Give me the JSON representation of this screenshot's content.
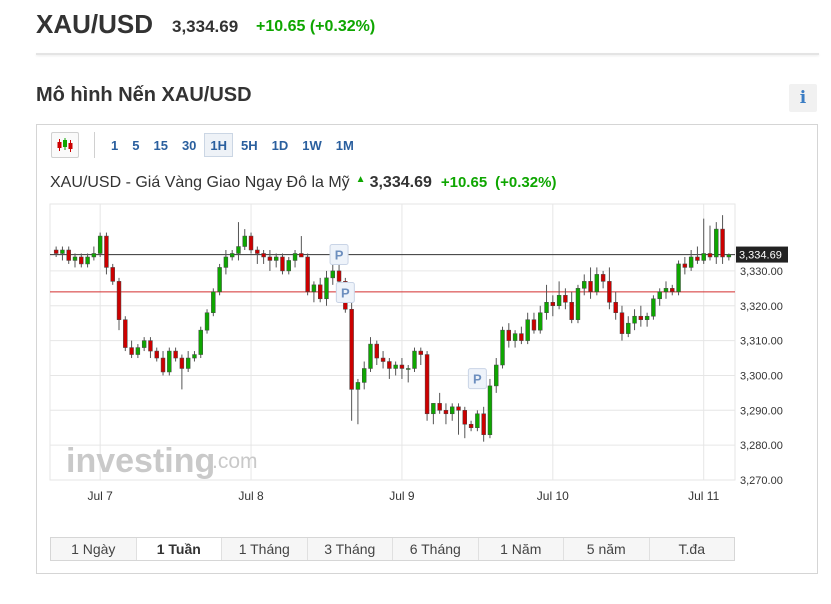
{
  "header": {
    "symbol": "XAU/USD",
    "price": "3,334.69",
    "change": "+10.65 (+0.32%)"
  },
  "section": {
    "title": "Mô hình Nến XAU/USD",
    "info_icon": "i"
  },
  "toolbar": {
    "candle_icon": "candlestick-icon",
    "intervals": [
      {
        "label": "1",
        "active": false
      },
      {
        "label": "5",
        "active": false
      },
      {
        "label": "15",
        "active": false
      },
      {
        "label": "30",
        "active": false
      },
      {
        "label": "1H",
        "active": true
      },
      {
        "label": "5H",
        "active": false
      },
      {
        "label": "1D",
        "active": false
      },
      {
        "label": "1W",
        "active": false
      },
      {
        "label": "1M",
        "active": false
      }
    ]
  },
  "chart_header": {
    "name": "XAU/USD - Giá Vàng Giao Ngay Đô la Mỹ",
    "price": "3,334.69",
    "change": "+10.65",
    "change_pct": "(+0.32%)"
  },
  "watermark": {
    "brand": "investing",
    "suffix": ".com"
  },
  "colors": {
    "up": "#0ea600",
    "down": "#cc0000",
    "price_line": "#333333",
    "reference_line": "#d32f2f",
    "grid": "#e6e6e6",
    "pattern_marker": "#6d8fbf"
  },
  "ranges": [
    {
      "label": "1 Ngày",
      "active": false
    },
    {
      "label": "1 Tuần",
      "active": true
    },
    {
      "label": "1 Tháng",
      "active": false
    },
    {
      "label": "3 Tháng",
      "active": false
    },
    {
      "label": "6 Tháng",
      "active": false
    },
    {
      "label": "1 Năm",
      "active": false
    },
    {
      "label": "5 năm",
      "active": false
    },
    {
      "label": "T.đa",
      "active": false
    }
  ],
  "chart_data": {
    "type": "candlestick",
    "interval": "1H",
    "ylim": [
      3270,
      3349.2
    ],
    "yticks": [
      3270,
      3280,
      3290,
      3300,
      3310,
      3320,
      3330
    ],
    "ytick_labels": [
      "3,270.00",
      "3,280.00",
      "3,290.00",
      "3,300.00",
      "3,310.00",
      "3,320.00",
      "3,330.00"
    ],
    "xticks": [
      {
        "label": "Jul 7",
        "index": 7
      },
      {
        "label": "Jul 8",
        "index": 31
      },
      {
        "label": "Jul 9",
        "index": 55
      },
      {
        "label": "Jul 10",
        "index": 79
      },
      {
        "label": "Jul 11",
        "index": 103
      }
    ],
    "grid": true,
    "current_price": 3334.69,
    "current_price_label": "3,334.69",
    "reference_line": 3324,
    "pattern_markers": [
      {
        "label": "P",
        "index": 45,
        "value": 3334.7
      },
      {
        "label": "P",
        "index": 46,
        "value": 3323.8
      },
      {
        "label": "P",
        "index": 67,
        "value": 3299.1
      }
    ],
    "candles": [
      [
        3336,
        3337,
        3334,
        3335
      ],
      [
        3335,
        3337,
        3333,
        3336
      ],
      [
        3336,
        3337,
        3332,
        3333
      ],
      [
        3333,
        3335,
        3331,
        3334
      ],
      [
        3334,
        3335,
        3331,
        3332
      ],
      [
        3332,
        3335,
        3331,
        3334
      ],
      [
        3334,
        3337,
        3333,
        3335
      ],
      [
        3335,
        3341,
        3334,
        3340
      ],
      [
        3340,
        3341,
        3329,
        3331
      ],
      [
        3331,
        3332,
        3326,
        3327
      ],
      [
        3327,
        3328,
        3313,
        3316
      ],
      [
        3316,
        3317,
        3307,
        3308
      ],
      [
        3308,
        3310,
        3305,
        3306
      ],
      [
        3306,
        3309,
        3305,
        3308
      ],
      [
        3308,
        3311,
        3307,
        3310
      ],
      [
        3310,
        3311,
        3305,
        3307
      ],
      [
        3307,
        3308,
        3304,
        3305
      ],
      [
        3305,
        3307,
        3300,
        3301
      ],
      [
        3301,
        3308,
        3300,
        3307
      ],
      [
        3307,
        3308,
        3304,
        3305
      ],
      [
        3305,
        3306,
        3296,
        3302
      ],
      [
        3302,
        3307,
        3301,
        3305
      ],
      [
        3305,
        3307,
        3304,
        3306
      ],
      [
        3306,
        3314,
        3305,
        3313
      ],
      [
        3313,
        3319,
        3312,
        3318
      ],
      [
        3318,
        3325,
        3317,
        3324
      ],
      [
        3324,
        3332,
        3323,
        3331
      ],
      [
        3331,
        3336,
        3329,
        3334
      ],
      [
        3334,
        3336,
        3333,
        3335
      ],
      [
        3335,
        3344,
        3333,
        3337
      ],
      [
        3337,
        3342,
        3336,
        3340
      ],
      [
        3340,
        3341,
        3335,
        3336
      ],
      [
        3336,
        3337,
        3332,
        3335
      ],
      [
        3335,
        3336,
        3332,
        3334
      ],
      [
        3334,
        3336,
        3330,
        3333
      ],
      [
        3333,
        3335,
        3331,
        3334
      ],
      [
        3334,
        3335,
        3329,
        3330
      ],
      [
        3330,
        3334,
        3329,
        3333
      ],
      [
        3333,
        3336,
        3331,
        3335
      ],
      [
        3335,
        3340,
        3334,
        3334
      ],
      [
        3334,
        3335,
        3323,
        3324
      ],
      [
        3324,
        3327,
        3321,
        3326
      ],
      [
        3326,
        3328,
        3321,
        3322
      ],
      [
        3322,
        3330,
        3320,
        3328
      ],
      [
        3328,
        3332,
        3326,
        3330
      ],
      [
        3330,
        3332,
        3326,
        3327
      ],
      [
        3327,
        3328,
        3318,
        3319
      ],
      [
        3319,
        3321,
        3287,
        3296
      ],
      [
        3296,
        3299,
        3286,
        3298
      ],
      [
        3298,
        3304,
        3296,
        3302
      ],
      [
        3302,
        3311,
        3301,
        3309
      ],
      [
        3309,
        3310,
        3303,
        3305
      ],
      [
        3305,
        3307,
        3302,
        3304
      ],
      [
        3304,
        3305,
        3299,
        3302
      ],
      [
        3302,
        3304,
        3300,
        3303
      ],
      [
        3303,
        3305,
        3299,
        3302
      ],
      [
        3302,
        3303,
        3298,
        3302
      ],
      [
        3302,
        3308,
        3301,
        3307
      ],
      [
        3307,
        3308,
        3303,
        3306
      ],
      [
        3306,
        3307,
        3287,
        3289
      ],
      [
        3289,
        3292,
        3286,
        3292
      ],
      [
        3292,
        3295,
        3289,
        3290
      ],
      [
        3290,
        3292,
        3286,
        3289
      ],
      [
        3289,
        3292,
        3287,
        3291
      ],
      [
        3291,
        3292,
        3283,
        3290
      ],
      [
        3290,
        3291,
        3282,
        3286
      ],
      [
        3286,
        3287,
        3284,
        3285
      ],
      [
        3285,
        3290,
        3284,
        3289
      ],
      [
        3289,
        3291,
        3281,
        3283
      ],
      [
        3283,
        3299,
        3282,
        3297
      ],
      [
        3297,
        3305,
        3295,
        3303
      ],
      [
        3303,
        3314,
        3302,
        3313
      ],
      [
        3313,
        3315,
        3308,
        3310
      ],
      [
        3310,
        3313,
        3308,
        3312
      ],
      [
        3312,
        3314,
        3309,
        3310
      ],
      [
        3310,
        3318,
        3309,
        3316
      ],
      [
        3316,
        3318,
        3312,
        3313
      ],
      [
        3313,
        3320,
        3312,
        3318
      ],
      [
        3318,
        3326,
        3316,
        3321
      ],
      [
        3321,
        3323,
        3317,
        3320
      ],
      [
        3320,
        3327,
        3319,
        3323
      ],
      [
        3323,
        3325,
        3319,
        3321
      ],
      [
        3321,
        3324,
        3315,
        3316
      ],
      [
        3316,
        3326,
        3315,
        3325
      ],
      [
        3325,
        3329,
        3323,
        3327
      ],
      [
        3327,
        3331,
        3322,
        3324
      ],
      [
        3324,
        3331,
        3323,
        3329
      ],
      [
        3329,
        3330,
        3325,
        3327
      ],
      [
        3327,
        3331,
        3319,
        3321
      ],
      [
        3321,
        3324,
        3316,
        3318
      ],
      [
        3318,
        3320,
        3310,
        3312
      ],
      [
        3312,
        3317,
        3311,
        3315
      ],
      [
        3315,
        3319,
        3313,
        3317
      ],
      [
        3317,
        3320,
        3314,
        3316
      ],
      [
        3316,
        3318,
        3314,
        3317
      ],
      [
        3317,
        3323,
        3316,
        3322
      ],
      [
        3322,
        3325,
        3320,
        3324
      ],
      [
        3324,
        3327,
        3322,
        3325
      ],
      [
        3325,
        3326,
        3323,
        3324
      ],
      [
        3324,
        3333,
        3323,
        3332
      ],
      [
        3332,
        3334,
        3329,
        3331
      ],
      [
        3331,
        3336,
        3330,
        3334
      ],
      [
        3334,
        3337,
        3332,
        3333
      ],
      [
        3333,
        3345,
        3332,
        3335
      ],
      [
        3335,
        3343,
        3333,
        3334
      ],
      [
        3334,
        3344,
        3332,
        3342
      ],
      [
        3342,
        3346,
        3332,
        3334
      ],
      [
        3334,
        3335,
        3333,
        3334.69
      ]
    ]
  }
}
